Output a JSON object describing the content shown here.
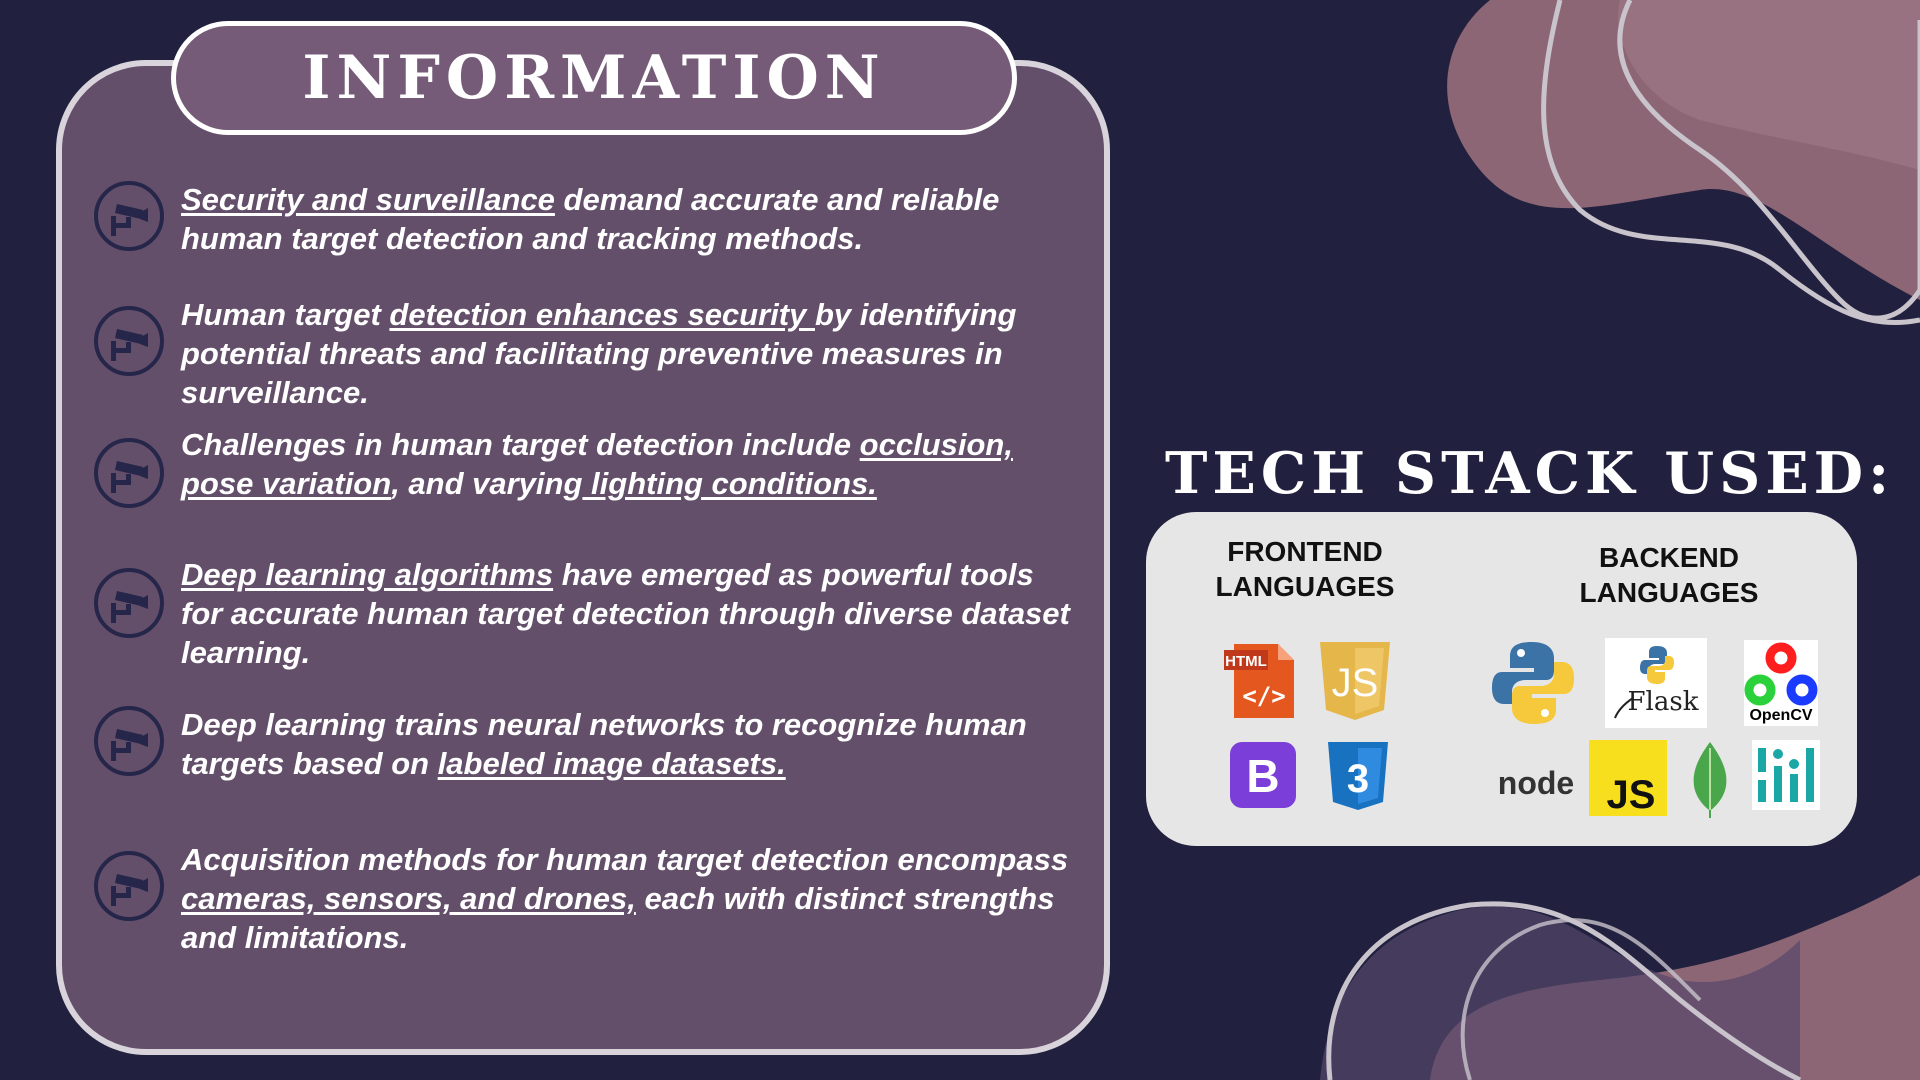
{
  "info": {
    "title": "INFORMATION",
    "items": [
      {
        "icon": "cctv-camera-icon",
        "segments": [
          {
            "text": "Security and surveillance",
            "u": true
          },
          {
            "text": " demand accurate and reliable human target detection and tracking methods.",
            "u": false
          }
        ]
      },
      {
        "icon": "cctv-camera-icon",
        "segments": [
          {
            "text": "Human target ",
            "u": false
          },
          {
            "text": "detection enhances security ",
            "u": true
          },
          {
            "text": "by identifying potential threats and facilitating preventive measures in surveillance.",
            "u": false
          }
        ]
      },
      {
        "icon": "cctv-camera-icon",
        "segments": [
          {
            "text": "Challenges in human target detection include ",
            "u": false
          },
          {
            "text": "occlusion, pose variation",
            "u": true
          },
          {
            "text": ", and varying",
            "u": false
          },
          {
            "text": " lighting conditions.",
            "u": true
          }
        ]
      },
      {
        "icon": "cctv-camera-icon",
        "segments": [
          {
            "text": "Deep learning algorithms",
            "u": true
          },
          {
            "text": " have emerged as powerful tools for accurate human target detection through diverse dataset learning.",
            "u": false
          }
        ]
      },
      {
        "icon": "cctv-camera-icon",
        "segments": [
          {
            "text": "Deep learning trains neural networks to recognize human targets based on ",
            "u": false
          },
          {
            "text": "labeled image datasets.",
            "u": true
          }
        ]
      },
      {
        "icon": "cctv-camera-icon",
        "segments": [
          {
            "text": "Acquisition methods for human target detection encompass ",
            "u": false
          },
          {
            "text": "cameras, sensors, and drones,",
            "u": true
          },
          {
            "text": " each with distinct strengths and limitations.",
            "u": false
          }
        ]
      }
    ]
  },
  "tech": {
    "title": "TECH STACK USED:",
    "frontend": {
      "title_line1": "FRONTEND",
      "title_line2": "LANGUAGES",
      "logos": [
        {
          "name": "html5-logo",
          "label": "HTML"
        },
        {
          "name": "javascript-logo",
          "label": "JS"
        },
        {
          "name": "bootstrap-logo",
          "label": "B"
        },
        {
          "name": "css3-logo",
          "label": "3"
        }
      ]
    },
    "backend": {
      "title_line1": "BACKEND",
      "title_line2": "LANGUAGES",
      "logos": [
        {
          "name": "python-logo",
          "label": ""
        },
        {
          "name": "flask-logo",
          "label": "Flask"
        },
        {
          "name": "opencv-logo",
          "label": "OpenCV"
        },
        {
          "name": "nodejs-logo",
          "label": "node"
        },
        {
          "name": "javascript-logo",
          "label": "JS"
        },
        {
          "name": "mongodb-logo",
          "label": ""
        },
        {
          "name": "analytics-logo",
          "label": ""
        }
      ]
    }
  },
  "colors": {
    "background": "#21213f",
    "card": "#634f6a",
    "header": "#755b78",
    "accent_blob": "#8c6675"
  }
}
